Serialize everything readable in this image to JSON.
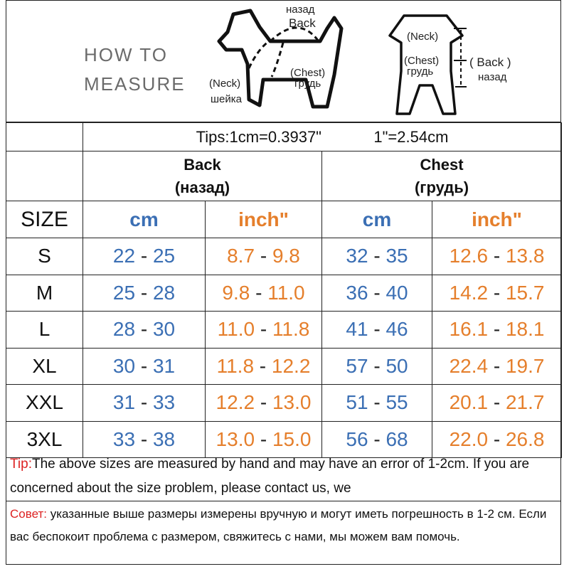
{
  "header": {
    "how_to": "HOW TO",
    "measure": "MEASURE",
    "dog_labels": {
      "back_ru": "назад",
      "back": "Back",
      "neck": "(Neck)",
      "neck_ru": "шейка",
      "chest": "(Chest)",
      "chest_ru": "грудь"
    },
    "garment_labels": {
      "neck": "(Neck)",
      "chest": "(Chest)",
      "chest_ru": "грудь",
      "back": "( Back )",
      "back_ru": "назад"
    }
  },
  "table": {
    "tips_cm": "Tips:1cm=0.3937\"",
    "tips_in": "1\"=2.54cm",
    "back_title": "Back",
    "back_title_ru": "(назад)",
    "chest_title": "Chest",
    "chest_title_ru": "(грудь)",
    "size_header": "SIZE",
    "unit_cm": "cm",
    "unit_inch": "inch\"",
    "rows": [
      {
        "size": "S",
        "back_cm": [
          "22",
          "25"
        ],
        "back_in": [
          "8.7",
          "9.8"
        ],
        "chest_cm": [
          "32",
          "35"
        ],
        "chest_in": [
          "12.6",
          "13.8"
        ]
      },
      {
        "size": "M",
        "back_cm": [
          "25",
          "28"
        ],
        "back_in": [
          "9.8",
          "11.0"
        ],
        "chest_cm": [
          "36",
          "40"
        ],
        "chest_in": [
          "14.2",
          "15.7"
        ]
      },
      {
        "size": "L",
        "back_cm": [
          "28",
          "30"
        ],
        "back_in": [
          "11.0",
          "11.8"
        ],
        "chest_cm": [
          "41",
          "46"
        ],
        "chest_in": [
          "16.1",
          "18.1"
        ]
      },
      {
        "size": "XL",
        "back_cm": [
          "30",
          "31"
        ],
        "back_in": [
          "11.8",
          "12.2"
        ],
        "chest_cm": [
          "57",
          "50"
        ],
        "chest_in": [
          "22.4",
          "19.7"
        ]
      },
      {
        "size": "XXL",
        "back_cm": [
          "31",
          "33"
        ],
        "back_in": [
          "12.2",
          "13.0"
        ],
        "chest_cm": [
          "51",
          "55"
        ],
        "chest_in": [
          "20.1",
          "21.7"
        ]
      },
      {
        "size": "3XL",
        "back_cm": [
          "33",
          "38"
        ],
        "back_in": [
          "13.0",
          "15.0"
        ],
        "chest_cm": [
          "56",
          "68"
        ],
        "chest_in": [
          "22.0",
          "26.8"
        ]
      }
    ]
  },
  "notes": {
    "tip_label": "Tip:",
    "tip_text": "The above sizes are measured by hand and may have an error of 1-2cm. If you are concerned about the size problem, please contact us, we",
    "ru_label": "Совет:",
    "ru_text": " указанные выше размеры измерены вручную и могут иметь погрешность в 1-2 см. Если вас беспокоит проблема с размером, свяжитесь с нами, мы можем вам помочь."
  },
  "colors": {
    "cm_blue": "#3b6fb4",
    "inch_orange": "#e57f2c",
    "tip_red": "#dd2222"
  }
}
